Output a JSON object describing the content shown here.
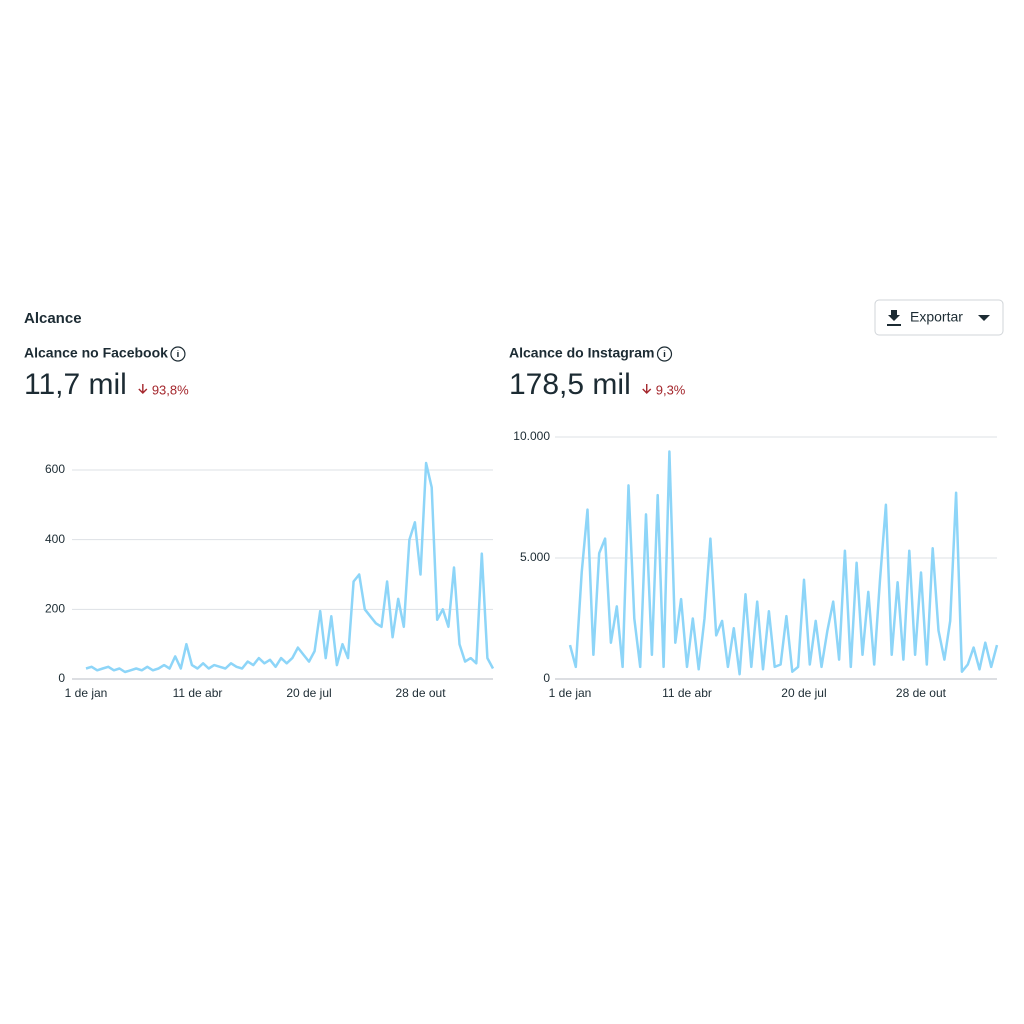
{
  "header": {
    "title": "Alcance",
    "button": "Exportar"
  },
  "chart_data": [
    {
      "type": "line",
      "title": "Alcance no Facebook",
      "total": "11,7 mil",
      "change": "93,8%",
      "color": "#8dd5f8",
      "grid": true,
      "x": [
        0,
        5,
        10,
        15,
        20,
        25,
        30,
        35,
        40,
        45,
        50,
        55,
        60,
        65,
        70,
        75,
        80,
        85,
        90,
        95,
        100,
        105,
        110,
        115,
        120,
        125,
        130,
        135,
        140,
        145,
        150,
        155,
        160,
        165,
        170,
        175,
        180,
        185,
        190,
        195,
        200,
        205,
        210,
        215,
        220,
        225,
        230,
        235,
        240,
        245,
        250,
        255,
        260,
        265,
        270,
        275,
        280,
        285,
        290,
        295,
        300,
        305,
        310,
        315,
        320,
        325,
        330,
        335,
        340,
        345,
        350,
        355,
        360,
        365
      ],
      "values": [
        30,
        35,
        25,
        30,
        35,
        25,
        30,
        20,
        25,
        30,
        25,
        35,
        25,
        30,
        40,
        30,
        65,
        30,
        100,
        40,
        30,
        45,
        30,
        40,
        35,
        30,
        45,
        35,
        30,
        50,
        40,
        60,
        45,
        55,
        35,
        60,
        45,
        60,
        90,
        70,
        50,
        80,
        195,
        60,
        180,
        40,
        100,
        60,
        280,
        300,
        200,
        180,
        160,
        150,
        280,
        120,
        230,
        150,
        400,
        450,
        300,
        620,
        550,
        170,
        200,
        150,
        320,
        100,
        50,
        60,
        45,
        360,
        60,
        30
      ],
      "xlim": [
        0,
        365
      ],
      "xticks": [
        {
          "value": 0,
          "label": "1 de jan"
        },
        {
          "value": 100,
          "label": "11 de abr"
        },
        {
          "value": 200,
          "label": "20 de jul"
        },
        {
          "value": 300,
          "label": "28 de out"
        }
      ],
      "ylim": [
        0,
        600
      ],
      "yticks": [
        0,
        200,
        400,
        600
      ]
    },
    {
      "type": "line",
      "title": "Alcance do Instagram",
      "total": "178,5 mil",
      "change": "9,3%",
      "color": "#8dd5f8",
      "grid": true,
      "x": [
        0,
        5,
        10,
        15,
        20,
        25,
        30,
        35,
        40,
        45,
        50,
        55,
        60,
        65,
        70,
        75,
        80,
        85,
        90,
        95,
        100,
        105,
        110,
        115,
        120,
        125,
        130,
        135,
        140,
        145,
        150,
        155,
        160,
        165,
        170,
        175,
        180,
        185,
        190,
        195,
        200,
        205,
        210,
        215,
        220,
        225,
        230,
        235,
        240,
        245,
        250,
        255,
        260,
        265,
        270,
        275,
        280,
        285,
        290,
        295,
        300,
        305,
        310,
        315,
        320,
        325,
        330,
        335,
        340,
        345,
        350,
        355,
        360,
        365
      ],
      "values": [
        1400,
        500,
        4400,
        7000,
        1000,
        5200,
        5800,
        1500,
        3000,
        500,
        8000,
        2500,
        500,
        6800,
        1000,
        7600,
        500,
        9400,
        1500,
        3300,
        500,
        2500,
        400,
        2500,
        5800,
        1800,
        2400,
        500,
        2100,
        200,
        3500,
        500,
        3200,
        400,
        2800,
        500,
        600,
        2600,
        300,
        500,
        4100,
        600,
        2400,
        500,
        2000,
        3200,
        800,
        5300,
        500,
        4800,
        1000,
        3600,
        600,
        4100,
        7200,
        1000,
        4000,
        800,
        5300,
        1000,
        4400,
        600,
        5400,
        2000,
        800,
        2400,
        7700,
        300,
        600,
        1300,
        400,
        1500,
        500,
        1400
      ],
      "xlim": [
        0,
        365
      ],
      "xticks": [
        {
          "value": 0,
          "label": "1 de jan"
        },
        {
          "value": 100,
          "label": "11 de abr"
        },
        {
          "value": 200,
          "label": "20 de jul"
        },
        {
          "value": 300,
          "label": "28 de out"
        }
      ],
      "ylim": [
        0,
        10000
      ],
      "yticks": [
        0,
        {
          "value": 5000,
          "label": "5.000"
        },
        {
          "value": 10000,
          "label": "10.000"
        }
      ]
    }
  ]
}
